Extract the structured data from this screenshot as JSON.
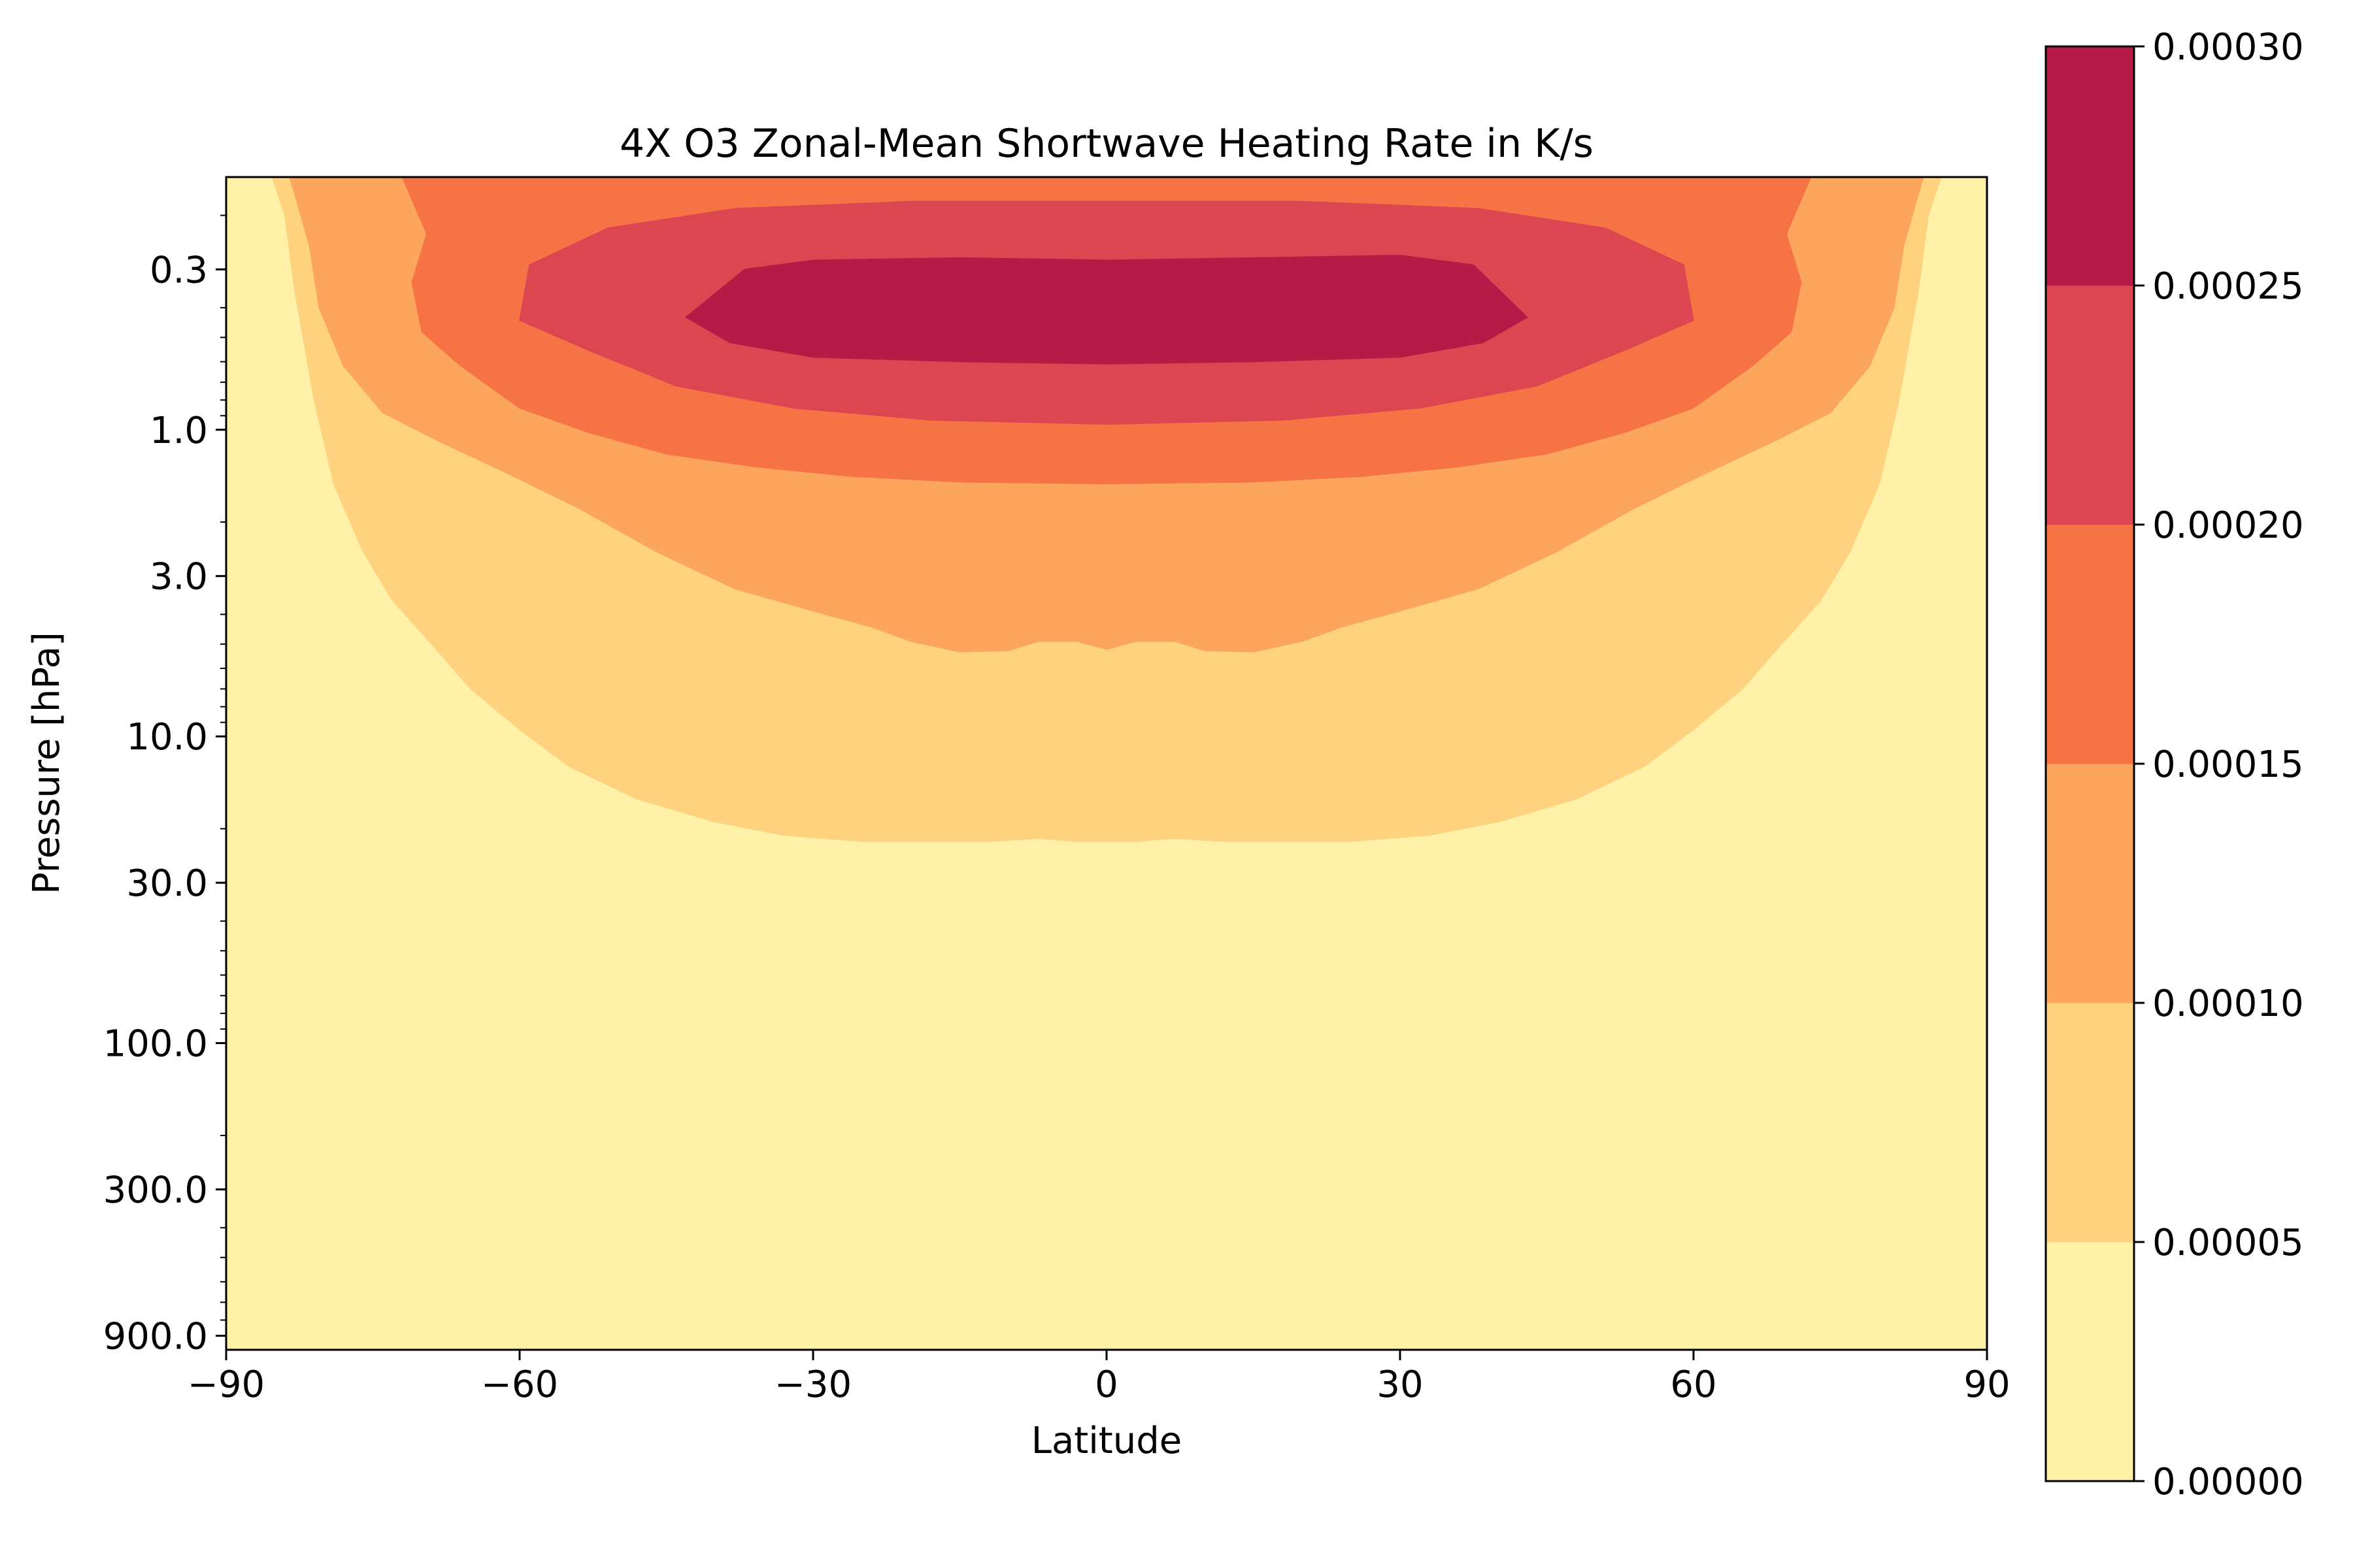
{
  "chart_data": {
    "type": "heatmap",
    "subtype": "filled-contour",
    "title": "4X O3 Zonal-Mean Shortwave Heating Rate in K/s",
    "xlabel": "Latitude",
    "ylabel": "Pressure [hPa]",
    "xlim": [
      -90,
      90
    ],
    "ylim": [
      1000,
      0.15
    ],
    "yscale": "log",
    "grid": false,
    "x_ticks": [
      {
        "value": -90,
        "label": "−90"
      },
      {
        "value": -60,
        "label": "−60"
      },
      {
        "value": -30,
        "label": "−30"
      },
      {
        "value": 0,
        "label": "0"
      },
      {
        "value": 30,
        "label": "30"
      },
      {
        "value": 60,
        "label": "60"
      },
      {
        "value": 90,
        "label": "90"
      }
    ],
    "y_ticks": [
      {
        "value": 0.3,
        "label": "0.3"
      },
      {
        "value": 1.0,
        "label": "1.0"
      },
      {
        "value": 3.0,
        "label": "3.0"
      },
      {
        "value": 10.0,
        "label": "10.0"
      },
      {
        "value": 30.0,
        "label": "30.0"
      },
      {
        "value": 100.0,
        "label": "100.0"
      },
      {
        "value": 300.0,
        "label": "300.0"
      },
      {
        "value": 900.0,
        "label": "900.0"
      }
    ],
    "colorbar": {
      "placement": "right",
      "levels": [
        0.0,
        5e-05,
        0.0001,
        0.00015,
        0.0002,
        0.00025,
        0.0003
      ],
      "tick_labels": [
        "0.00000",
        "0.00005",
        "0.00010",
        "0.00015",
        "0.00020",
        "0.00025",
        "0.00030"
      ],
      "colors": [
        "#fff1a8",
        "#fed27f",
        "#fca55d",
        "#f67346",
        "#dc4650",
        "#b41b47"
      ]
    },
    "contours": [
      {
        "level": 5e-05,
        "color": "#fed27f",
        "points": [
          [
            -85.3,
            0.15
          ],
          [
            -84,
            0.2
          ],
          [
            -83,
            0.35
          ],
          [
            -81,
            0.8
          ],
          [
            -79,
            1.5
          ],
          [
            -76,
            2.5
          ],
          [
            -73,
            3.6
          ],
          [
            -69,
            5
          ],
          [
            -65,
            7
          ],
          [
            -60,
            9.5
          ],
          [
            -55,
            12.5
          ],
          [
            -48,
            16
          ],
          [
            -40,
            19
          ],
          [
            -33,
            21
          ],
          [
            -25,
            22
          ],
          [
            -12,
            22
          ],
          [
            -7,
            21.5
          ],
          [
            -3,
            22
          ],
          [
            3,
            22
          ],
          [
            7,
            21.5
          ],
          [
            12,
            22
          ],
          [
            25,
            22
          ],
          [
            33,
            21
          ],
          [
            40,
            19
          ],
          [
            48,
            16
          ],
          [
            55,
            12.5
          ],
          [
            60,
            9.5
          ],
          [
            65,
            7
          ],
          [
            69,
            5
          ],
          [
            73,
            3.6
          ],
          [
            76,
            2.5
          ],
          [
            79,
            1.5
          ],
          [
            81,
            0.8
          ],
          [
            83,
            0.35
          ],
          [
            84,
            0.2
          ],
          [
            85.3,
            0.15
          ]
        ]
      },
      {
        "level": 0.0001,
        "color": "#fca55d",
        "points": [
          [
            -83.5,
            0.15
          ],
          [
            -81.5,
            0.25
          ],
          [
            -80.5,
            0.4
          ],
          [
            -78,
            0.62
          ],
          [
            -74,
            0.88
          ],
          [
            -68,
            1.1
          ],
          [
            -61,
            1.4
          ],
          [
            -54,
            1.8
          ],
          [
            -46,
            2.5
          ],
          [
            -38,
            3.3
          ],
          [
            -30,
            3.9
          ],
          [
            -24,
            4.4
          ],
          [
            -20,
            4.9
          ],
          [
            -15,
            5.3
          ],
          [
            -10,
            5.25
          ],
          [
            -7,
            4.9
          ],
          [
            -3,
            4.9
          ],
          [
            0,
            5.2
          ],
          [
            3,
            4.9
          ],
          [
            7,
            4.9
          ],
          [
            10,
            5.25
          ],
          [
            15,
            5.3
          ],
          [
            20,
            4.9
          ],
          [
            24,
            4.4
          ],
          [
            30,
            3.9
          ],
          [
            38,
            3.3
          ],
          [
            46,
            2.5
          ],
          [
            54,
            1.8
          ],
          [
            61,
            1.4
          ],
          [
            68,
            1.1
          ],
          [
            74,
            0.88
          ],
          [
            78,
            0.62
          ],
          [
            80.5,
            0.4
          ],
          [
            81.5,
            0.25
          ],
          [
            83.5,
            0.15
          ]
        ]
      },
      {
        "level": 0.00015,
        "color": "#f67346",
        "points": [
          [
            -72,
            0.15
          ],
          [
            -69.5,
            0.23
          ],
          [
            -71,
            0.33
          ],
          [
            -70,
            0.48
          ],
          [
            -66,
            0.62
          ],
          [
            -60,
            0.85
          ],
          [
            -53,
            1.02
          ],
          [
            -45,
            1.2
          ],
          [
            -36,
            1.32
          ],
          [
            -26,
            1.42
          ],
          [
            -15,
            1.48
          ],
          [
            0,
            1.5
          ],
          [
            15,
            1.48
          ],
          [
            26,
            1.42
          ],
          [
            36,
            1.32
          ],
          [
            45,
            1.2
          ],
          [
            53,
            1.02
          ],
          [
            60,
            0.85
          ],
          [
            66,
            0.62
          ],
          [
            70,
            0.48
          ],
          [
            71,
            0.33
          ],
          [
            69.5,
            0.23
          ],
          [
            72,
            0.15
          ]
        ]
      },
      {
        "level": 0.0002,
        "color": "#dc4650",
        "points": [
          [
            -60,
            0.44
          ],
          [
            -59,
            0.29
          ],
          [
            -51,
            0.22
          ],
          [
            -38,
            0.19
          ],
          [
            -20,
            0.18
          ],
          [
            0,
            0.18
          ],
          [
            20,
            0.18
          ],
          [
            38,
            0.19
          ],
          [
            51,
            0.22
          ],
          [
            59,
            0.29
          ],
          [
            60,
            0.44
          ],
          [
            53,
            0.55
          ],
          [
            44,
            0.72
          ],
          [
            32,
            0.85
          ],
          [
            18,
            0.93
          ],
          [
            0,
            0.96
          ],
          [
            -18,
            0.93
          ],
          [
            -32,
            0.85
          ],
          [
            -44,
            0.72
          ],
          [
            -53,
            0.55
          ]
        ]
      },
      {
        "level": 0.00025,
        "color": "#b41b47",
        "points": [
          [
            -43,
            0.43
          ],
          [
            -37,
            0.3
          ],
          [
            -30,
            0.28
          ],
          [
            -15,
            0.275
          ],
          [
            0,
            0.28
          ],
          [
            15,
            0.275
          ],
          [
            30,
            0.27
          ],
          [
            37.5,
            0.29
          ],
          [
            43,
            0.43
          ],
          [
            38.5,
            0.52
          ],
          [
            30,
            0.58
          ],
          [
            15,
            0.6
          ],
          [
            0,
            0.61
          ],
          [
            -15,
            0.6
          ],
          [
            -30,
            0.58
          ],
          [
            -38.5,
            0.52
          ]
        ]
      }
    ]
  }
}
